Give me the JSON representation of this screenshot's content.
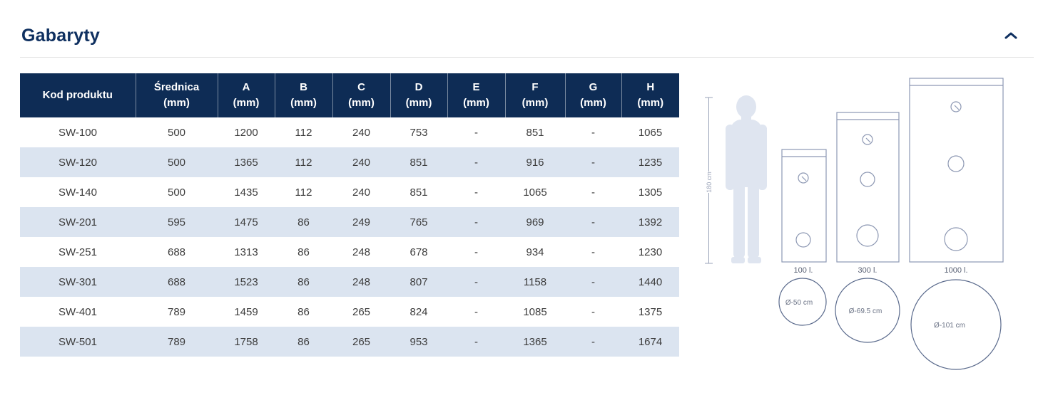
{
  "section": {
    "title": "Gabaryty",
    "collapse_icon": "chevron-up-icon"
  },
  "table": {
    "columns": [
      {
        "label": "Kod produktu",
        "unit": ""
      },
      {
        "label": "Średnica",
        "unit": "(mm)"
      },
      {
        "label": "A",
        "unit": "(mm)"
      },
      {
        "label": "B",
        "unit": "(mm)"
      },
      {
        "label": "C",
        "unit": "(mm)"
      },
      {
        "label": "D",
        "unit": "(mm)"
      },
      {
        "label": "E",
        "unit": "(mm)"
      },
      {
        "label": "F",
        "unit": "(mm)"
      },
      {
        "label": "G",
        "unit": "(mm)"
      },
      {
        "label": "H",
        "unit": "(mm)"
      }
    ],
    "rows": [
      [
        "SW-100",
        "500",
        "1200",
        "112",
        "240",
        "753",
        "-",
        "851",
        "-",
        "1065"
      ],
      [
        "SW-120",
        "500",
        "1365",
        "112",
        "240",
        "851",
        "-",
        "916",
        "-",
        "1235"
      ],
      [
        "SW-140",
        "500",
        "1435",
        "112",
        "240",
        "851",
        "-",
        "1065",
        "-",
        "1305"
      ],
      [
        "SW-201",
        "595",
        "1475",
        "86",
        "249",
        "765",
        "-",
        "969",
        "-",
        "1392"
      ],
      [
        "SW-251",
        "688",
        "1313",
        "86",
        "248",
        "678",
        "-",
        "934",
        "-",
        "1230"
      ],
      [
        "SW-301",
        "688",
        "1523",
        "86",
        "248",
        "807",
        "-",
        "1158",
        "-",
        "1440"
      ],
      [
        "SW-401",
        "789",
        "1459",
        "86",
        "265",
        "824",
        "-",
        "1085",
        "-",
        "1375"
      ],
      [
        "SW-501",
        "789",
        "1758",
        "86",
        "265",
        "953",
        "-",
        "1365",
        "-",
        "1674"
      ]
    ]
  },
  "diagram": {
    "height_label": "180 cm",
    "tanks": [
      {
        "capacity_label": "100 l.",
        "diameter_label": "Ø-50 cm"
      },
      {
        "capacity_label": "300 l.",
        "diameter_label": "Ø-69.5 cm"
      },
      {
        "capacity_label": "1000 l.",
        "diameter_label": "Ø-101 cm"
      }
    ]
  },
  "colors": {
    "title": "#0f3060",
    "table_header_bg": "#0e2c55",
    "table_row_alt_bg": "#dbe4f0",
    "diagram_outline": "#8d98b3",
    "diagram_circle_outline": "#5a6a8c",
    "silhouette_fill": "#dfe5f0"
  }
}
